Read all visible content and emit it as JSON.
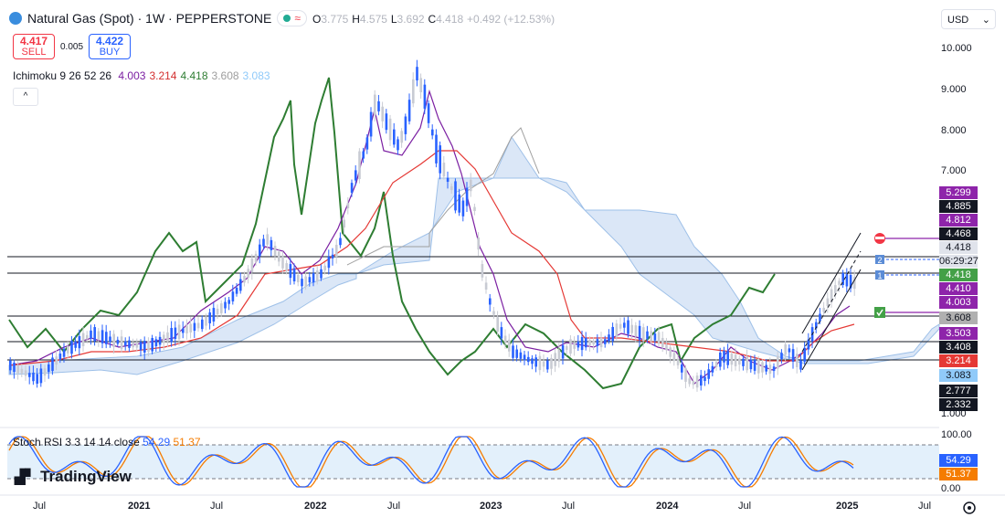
{
  "header": {
    "title": "Natural Gas (Spot) · 1W · PEPPERSTONE",
    "wave_icon": "≈",
    "ohlc": [
      {
        "label": "O",
        "value": "3.775"
      },
      {
        "label": "H",
        "value": "4.575"
      },
      {
        "label": "L",
        "value": "3.692"
      },
      {
        "label": "C",
        "value": "4.418"
      }
    ],
    "change": "+0.492 (+12.53%)",
    "currency": "USD"
  },
  "trade": {
    "sell_price": "4.417",
    "sell_label": "SELL",
    "spread": "0.005",
    "buy_price": "4.422",
    "buy_label": "BUY"
  },
  "ichimoku": {
    "label": "Ichimoku 9 26 52 26",
    "values": [
      {
        "v": "4.003",
        "color": "#7b1fa2"
      },
      {
        "v": "3.214",
        "color": "#d32f2f"
      },
      {
        "v": "4.418",
        "color": "#2e7d32"
      },
      {
        "v": "3.608",
        "color": "#9e9e9e"
      },
      {
        "v": "3.083",
        "color": "#90caf9"
      }
    ]
  },
  "collapse_icon": "^",
  "price_axis": [
    "10.000",
    "9.000",
    "8.000",
    "7.000",
    "1.000"
  ],
  "price_badges": [
    {
      "v": "5.299",
      "color": "#8e24aa"
    },
    {
      "v": "4.885",
      "color": "#131722"
    },
    {
      "v": "4.812",
      "color": "#8e24aa"
    },
    {
      "v": "4.468",
      "color": "#131722"
    },
    {
      "v": "4.418",
      "color": "#e0e3eb",
      "text": "#131722"
    },
    {
      "v": "06:29:27",
      "color": "#e0e3eb",
      "text": "#131722"
    },
    {
      "v": "4.418",
      "color": "#43a047"
    },
    {
      "v": "4.410",
      "color": "#8e24aa"
    },
    {
      "v": "4.003",
      "color": "#8e24aa"
    },
    {
      "v": "3.608",
      "color": "#b0b0b0",
      "text": "#131722"
    },
    {
      "v": "3.503",
      "color": "#8e24aa"
    },
    {
      "v": "3.408",
      "color": "#131722"
    },
    {
      "v": "3.214",
      "color": "#e53935"
    },
    {
      "v": "3.083",
      "color": "#90caf9",
      "text": "#131722"
    },
    {
      "v": "2.777",
      "color": "#131722"
    },
    {
      "v": "2.332",
      "color": "#131722"
    }
  ],
  "time_axis": [
    {
      "label": "Jul",
      "bold": false
    },
    {
      "label": "2021",
      "bold": true
    },
    {
      "label": "Jul",
      "bold": false
    },
    {
      "label": "2022",
      "bold": true
    },
    {
      "label": "Jul",
      "bold": false
    },
    {
      "label": "2023",
      "bold": true
    },
    {
      "label": "Jul",
      "bold": false
    },
    {
      "label": "2024",
      "bold": true
    },
    {
      "label": "Jul",
      "bold": false
    },
    {
      "label": "2025",
      "bold": true
    },
    {
      "label": "Jul",
      "bold": false
    }
  ],
  "stoch": {
    "label": "Stoch RSI 3 3 14 14 close",
    "k": "54.29",
    "d": "51.37",
    "axis": [
      "100.00",
      "0.00"
    ],
    "badges": [
      {
        "v": "54.29",
        "color": "#2962ff"
      },
      {
        "v": "51.37",
        "color": "#f57c00"
      }
    ]
  },
  "markers": [
    "2",
    "1"
  ],
  "logo": "TradingView",
  "colors": {
    "candle_up": "#c8cbd3",
    "candle_down": "#2962ff",
    "lagging": "#2e7d32",
    "conversion": "#7b1fa2",
    "base": "#e53935",
    "cloud": "#dbe7f7"
  }
}
